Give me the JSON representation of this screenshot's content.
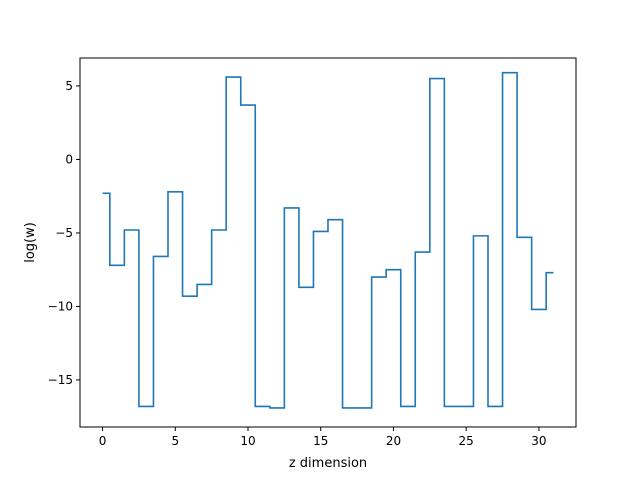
{
  "chart_data": {
    "type": "line",
    "drawstyle": "steps-mid",
    "title": "",
    "xlabel": "z dimension",
    "ylabel": "log(w)",
    "xlim": [
      -1.55,
      32.55
    ],
    "ylim": [
      -18.2,
      6.9
    ],
    "xticks": [
      0,
      5,
      10,
      15,
      20,
      25,
      30
    ],
    "yticks": [
      5,
      0,
      -5,
      -10,
      -15
    ],
    "ytick_labels": [
      "5",
      "0",
      "−5",
      "−10",
      "−15"
    ],
    "grid": false,
    "legend": "none",
    "series": [
      {
        "color": "#1f77b4",
        "x": [
          0,
          1,
          2,
          3,
          4,
          5,
          6,
          7,
          8,
          9,
          10,
          11,
          12,
          13,
          14,
          15,
          16,
          17,
          18,
          19,
          20,
          21,
          22,
          23,
          24,
          25,
          26,
          27,
          28,
          29,
          30,
          31
        ],
        "y": [
          -2.3,
          -7.2,
          -4.8,
          -16.8,
          -6.6,
          -2.2,
          -9.3,
          -8.5,
          -4.8,
          5.6,
          3.7,
          -16.8,
          -16.9,
          -3.3,
          -8.7,
          -4.9,
          -4.1,
          -16.9,
          -16.9,
          -8.0,
          -7.5,
          -16.8,
          -6.3,
          5.5,
          -16.8,
          -16.8,
          -5.2,
          -16.8,
          5.9,
          -5.3,
          -10.2,
          -7.7
        ]
      }
    ]
  }
}
